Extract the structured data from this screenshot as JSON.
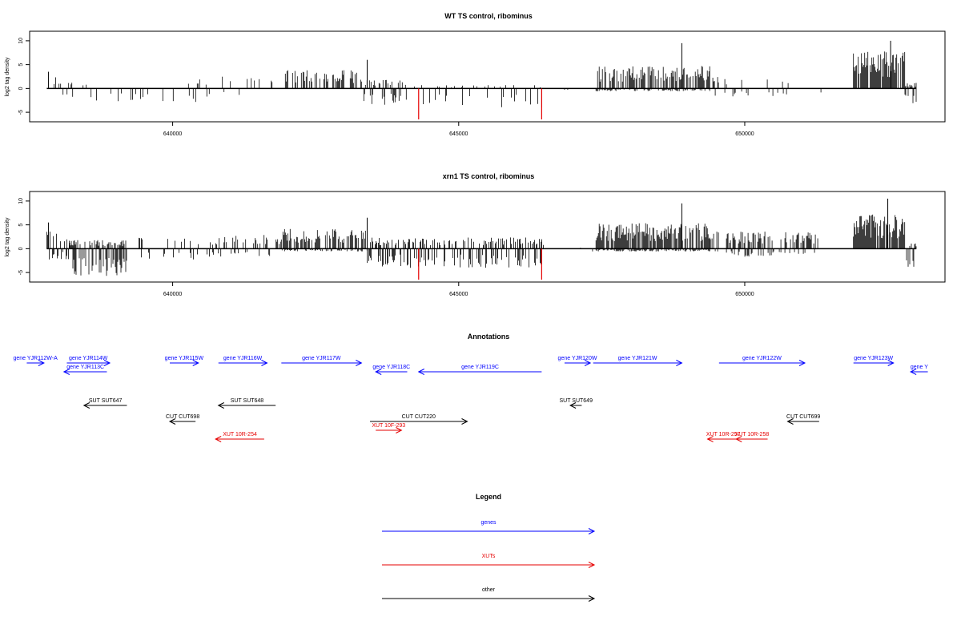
{
  "chart_data": [
    {
      "type": "bar",
      "title": "WT TS control, ribominus",
      "ylabel": "log2 tag density",
      "xlim": [
        637500,
        653500
      ],
      "ylim": [
        -7,
        12
      ],
      "x_ticks": [
        640000,
        645000,
        650000
      ],
      "x_tick_labels": [
        "640000",
        "645000",
        "650000"
      ],
      "y_ticks": [
        -5,
        0,
        5,
        10
      ],
      "y_tick_labels": [
        "-5",
        "0",
        "5",
        "10"
      ],
      "grid": false,
      "baseline": 0,
      "highlight_color": "#e60000",
      "highlights": [
        {
          "x": 644300,
          "y": -6.5
        },
        {
          "x": 646450,
          "y": -6.5
        }
      ],
      "density": [
        {
          "start": 637800,
          "end": 638000,
          "pos": 2.0,
          "neg": 0,
          "dens": 0.15
        },
        {
          "start": 638000,
          "end": 638600,
          "pos": 1.0,
          "neg": -3.0,
          "dens": 0.2
        },
        {
          "start": 638600,
          "end": 639600,
          "pos": 0,
          "neg": -2.8,
          "dens": 0.2
        },
        {
          "start": 639800,
          "end": 640800,
          "pos": 2.0,
          "neg": -2.5,
          "dens": 0.08
        },
        {
          "start": 640800,
          "end": 641900,
          "pos": 2.5,
          "neg": -1.2,
          "dens": 0.1
        },
        {
          "start": 641900,
          "end": 643300,
          "pos": 3.2,
          "neg": 0,
          "dens": 0.5
        },
        {
          "start": 643300,
          "end": 644200,
          "pos": 1.5,
          "neg": -3.0,
          "dens": 0.25
        },
        {
          "start": 644200,
          "end": 646500,
          "pos": 0.6,
          "neg": -3.5,
          "dens": 0.12
        },
        {
          "start": 646500,
          "end": 647400,
          "pos": 0.3,
          "neg": -0.5,
          "dens": 0.03
        },
        {
          "start": 647400,
          "end": 649400,
          "pos": 4.0,
          "neg": -0.5,
          "dens": 0.6
        },
        {
          "start": 649400,
          "end": 651400,
          "pos": 2.0,
          "neg": -1.5,
          "dens": 0.08
        },
        {
          "start": 651900,
          "end": 652800,
          "pos": 6.5,
          "neg": 0,
          "dens": 0.9
        },
        {
          "start": 652800,
          "end": 653000,
          "pos": 1.0,
          "neg": -3.0,
          "dens": 0.3
        }
      ],
      "peaks": [
        {
          "x": 643400,
          "y": 6.0
        },
        {
          "x": 648900,
          "y": 9.5
        },
        {
          "x": 652550,
          "y": 10.0
        },
        {
          "x": 637830,
          "y": 3.5
        }
      ]
    },
    {
      "type": "bar",
      "title": "xrn1 TS control, ribominus",
      "ylabel": "log2 tag density",
      "xlim": [
        637500,
        653500
      ],
      "ylim": [
        -7,
        12
      ],
      "x_ticks": [
        640000,
        645000,
        650000
      ],
      "x_tick_labels": [
        "640000",
        "645000",
        "650000"
      ],
      "y_ticks": [
        -5,
        0,
        5,
        10
      ],
      "y_tick_labels": [
        "-5",
        "0",
        "5",
        "10"
      ],
      "grid": false,
      "baseline": 0,
      "highlight_color": "#e60000",
      "highlights": [
        {
          "x": 644300,
          "y": -6.5
        },
        {
          "x": 646450,
          "y": -6.5
        }
      ],
      "density": [
        {
          "start": 637800,
          "end": 638200,
          "pos": 3.0,
          "neg": -2.0,
          "dens": 0.3
        },
        {
          "start": 638200,
          "end": 639200,
          "pos": 1.5,
          "neg": -5.0,
          "dens": 0.55
        },
        {
          "start": 639200,
          "end": 640800,
          "pos": 2.0,
          "neg": -2.0,
          "dens": 0.15
        },
        {
          "start": 640800,
          "end": 641900,
          "pos": 2.5,
          "neg": -1.5,
          "dens": 0.2
        },
        {
          "start": 641900,
          "end": 643400,
          "pos": 3.5,
          "neg": -0.5,
          "dens": 0.55
        },
        {
          "start": 643400,
          "end": 646500,
          "pos": 2.0,
          "neg": -3.5,
          "dens": 0.45
        },
        {
          "start": 646500,
          "end": 647400,
          "pos": 0.3,
          "neg": -0.5,
          "dens": 0.03
        },
        {
          "start": 647400,
          "end": 649400,
          "pos": 4.5,
          "neg": -0.5,
          "dens": 0.8
        },
        {
          "start": 649400,
          "end": 651300,
          "pos": 3.0,
          "neg": -1.5,
          "dens": 0.35
        },
        {
          "start": 651900,
          "end": 652800,
          "pos": 6.0,
          "neg": 0,
          "dens": 0.9
        },
        {
          "start": 652800,
          "end": 653000,
          "pos": 1.0,
          "neg": -4.0,
          "dens": 0.5
        }
      ],
      "peaks": [
        {
          "x": 643400,
          "y": 6.5
        },
        {
          "x": 648900,
          "y": 9.5
        },
        {
          "x": 652500,
          "y": 10.5
        },
        {
          "x": 637830,
          "y": 5.5
        }
      ]
    }
  ],
  "annotations": {
    "title": "Annotations",
    "colors": {
      "genes": "#0000ff",
      "XUTs": "#e60000",
      "other": "#000000"
    },
    "features": [
      {
        "label": "gene YJR112W-A",
        "x1": 637450,
        "x2": 637750,
        "row": 1,
        "cat": "genes"
      },
      {
        "label": "gene YJR113C",
        "x1": 638850,
        "x2": 638100,
        "row": 2,
        "cat": "genes"
      },
      {
        "label": "gene YJR114W",
        "x1": 638150,
        "x2": 638900,
        "row": 1,
        "cat": "genes"
      },
      {
        "label": "gene YJR115W",
        "x1": 639950,
        "x2": 640450,
        "row": 1,
        "cat": "genes"
      },
      {
        "label": "gene YJR116W",
        "x1": 640800,
        "x2": 641650,
        "row": 1,
        "cat": "genes"
      },
      {
        "label": "gene YJR117W",
        "x1": 641900,
        "x2": 643300,
        "row": 1,
        "cat": "genes"
      },
      {
        "label": "gene YJR118C",
        "x1": 644100,
        "x2": 643550,
        "row": 2,
        "cat": "genes"
      },
      {
        "label": "gene YJR119C",
        "x1": 646450,
        "x2": 644300,
        "row": 2,
        "cat": "genes"
      },
      {
        "label": "gene YJR120W",
        "x1": 646850,
        "x2": 647300,
        "row": 1,
        "cat": "genes"
      },
      {
        "label": "gene YJR121W",
        "x1": 647350,
        "x2": 648900,
        "row": 1,
        "cat": "genes"
      },
      {
        "label": "gene YJR122W",
        "x1": 649550,
        "x2": 651050,
        "row": 1,
        "cat": "genes"
      },
      {
        "label": "gene YJR123W",
        "x1": 651900,
        "x2": 652600,
        "row": 1,
        "cat": "genes"
      },
      {
        "label": "gene Y",
        "x1": 653200,
        "x2": 652900,
        "row": 2,
        "cat": "genes"
      },
      {
        "label": "SUT SUT647",
        "x1": 639200,
        "x2": 638450,
        "row": 3,
        "cat": "other"
      },
      {
        "label": "SUT SUT648",
        "x1": 641800,
        "x2": 640800,
        "row": 3,
        "cat": "other"
      },
      {
        "label": "CUT CUT220",
        "x1": 643450,
        "x2": 645150,
        "row": 4,
        "cat": "other"
      },
      {
        "label": "SUT SUT649",
        "x1": 647150,
        "x2": 646950,
        "row": 3,
        "cat": "other"
      },
      {
        "label": "CUT CUT698",
        "x1": 640400,
        "x2": 639950,
        "row": 4,
        "cat": "other"
      },
      {
        "label": "CUT CUT699",
        "x1": 651300,
        "x2": 650750,
        "row": 4,
        "cat": "other"
      },
      {
        "label": "XUT 10F-293",
        "x1": 643550,
        "x2": 644000,
        "row": 5,
        "cat": "XUTs"
      },
      {
        "label": "XUT 10R-254",
        "x1": 641600,
        "x2": 640750,
        "row": 6,
        "cat": "XUTs"
      },
      {
        "label": "XUT 10R-257",
        "x1": 649900,
        "x2": 649350,
        "row": 6,
        "cat": "XUTs"
      },
      {
        "label": "XUT 10R-258",
        "x1": 650400,
        "x2": 649850,
        "row": 6,
        "cat": "XUTs"
      }
    ]
  },
  "legend": {
    "title": "Legend",
    "items": [
      {
        "label": "genes",
        "color": "#0000ff"
      },
      {
        "label": "XUTs",
        "color": "#e60000"
      },
      {
        "label": "other",
        "color": "#000000"
      }
    ]
  }
}
